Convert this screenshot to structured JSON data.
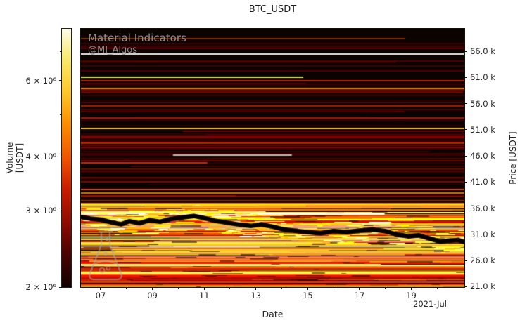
{
  "watermark": {
    "line1": "Material Indicators",
    "line2": "@MI_Algos"
  },
  "colors": {
    "figure_bg": "#ffffff",
    "text": "#262626",
    "watermark_text": "#8f8f8f",
    "plot_bg": "#0b0300",
    "colorbar_stops": [
      "#120100",
      "#4a0400",
      "#8f0b00",
      "#c81c00",
      "#ef5500",
      "#fb8c00",
      "#fdc52a",
      "#f9e96a",
      "#fdfbe8"
    ]
  },
  "chart_data": {
    "type": "heatmap",
    "title": "BTC_USDT",
    "xlabel": "Date",
    "x_period_label": "2021-Jul",
    "grid": false,
    "legend": "none",
    "x_domain_days": [
      6.24,
      21.05
    ],
    "x_ticks": [
      {
        "day": 7,
        "label": "07"
      },
      {
        "day": 9,
        "label": "09"
      },
      {
        "day": 11,
        "label": "11"
      },
      {
        "day": 13,
        "label": "13"
      },
      {
        "day": 15,
        "label": "15"
      },
      {
        "day": 17,
        "label": "17"
      },
      {
        "day": 19,
        "label": "19"
      }
    ],
    "x_minor_tick_days": [
      8,
      10,
      12,
      14,
      16,
      18,
      20
    ],
    "price_axis_label": "Price [USDT]",
    "price_domain_k": [
      20.9,
      70.3
    ],
    "price_ticks": [
      {
        "value": 66,
        "label": "66.0 k"
      },
      {
        "value": 61,
        "label": "61.0 k"
      },
      {
        "value": 56,
        "label": "56.0 k"
      },
      {
        "value": 51,
        "label": "51.0 k"
      },
      {
        "value": 46,
        "label": "46.0 k"
      },
      {
        "value": 41,
        "label": "41.0 k"
      },
      {
        "value": 36,
        "label": "36.0 k"
      },
      {
        "value": 31,
        "label": "31.0 k"
      },
      {
        "value": 26,
        "label": "26.0 k"
      },
      {
        "value": 21,
        "label": "21.0 k"
      }
    ],
    "volume_axis_label": "Volume [USDT]",
    "volume_scale": "log",
    "volume_domain": [
      2000000,
      7900000
    ],
    "volume_ticks": [
      {
        "value": 6000000,
        "label": "6 × 10⁶"
      },
      {
        "value": 4000000,
        "label": "4 × 10⁶"
      },
      {
        "value": 3000000,
        "label": "3 × 10⁶"
      },
      {
        "value": 2000000,
        "label": "2 × 10⁶"
      }
    ],
    "volume_minor_tick_values": [
      5000000,
      7000000
    ],
    "background": "#0b0300",
    "texture_seed": 1337,
    "dense_zone_price_k": [
      21.0,
      36.6
    ],
    "sparse_zone_price_k": [
      36.8,
      69.8
    ],
    "price_line": {
      "days": [
        6.24,
        6.6,
        7.0,
        7.4,
        7.8,
        8.1,
        8.5,
        8.9,
        9.3,
        9.7,
        10.1,
        10.6,
        11.0,
        11.4,
        11.9,
        12.3,
        12.8,
        13.2,
        13.7,
        14.1,
        14.6,
        15.0,
        15.5,
        16.0,
        16.5,
        17.0,
        17.5,
        18.0,
        18.4,
        18.9,
        19.3,
        19.7,
        20.1,
        20.5,
        20.8,
        21.05
      ],
      "price_k": [
        34.3,
        34.0,
        33.8,
        33.3,
        32.9,
        33.5,
        33.1,
        33.7,
        33.4,
        33.9,
        34.2,
        34.5,
        34.1,
        33.6,
        33.2,
        32.9,
        32.6,
        32.9,
        32.4,
        31.9,
        31.6,
        31.4,
        31.2,
        31.6,
        31.4,
        31.7,
        31.9,
        31.6,
        31.0,
        30.6,
        30.8,
        30.2,
        29.6,
        29.8,
        29.9,
        29.5
      ]
    },
    "notable_liquidity_lines": [
      {
        "price_k": 65.5,
        "x0": 0,
        "x1": 1,
        "color": "#eaeaea",
        "width": 2
      },
      {
        "price_k": 63.2,
        "x0": 0,
        "x1": 1,
        "color": "#4a0600",
        "width": 1
      },
      {
        "price_k": 61.0,
        "x0": 0,
        "x1": 0.58,
        "color": "#d8e34c",
        "width": 2
      },
      {
        "price_k": 60.3,
        "x0": 0,
        "x1": 1,
        "color": "#c42100",
        "width": 2
      },
      {
        "price_k": 58.9,
        "x0": 0,
        "x1": 1,
        "color": "#8f1200",
        "width": 1
      },
      {
        "price_k": 57.6,
        "x0": 0,
        "x1": 1,
        "color": "#5f0900",
        "width": 1
      },
      {
        "price_k": 56.2,
        "x0": 0,
        "x1": 1,
        "color": "#7c0e00",
        "width": 1
      },
      {
        "price_k": 54.8,
        "x0": 0,
        "x1": 1,
        "color": "#490500",
        "width": 1
      },
      {
        "price_k": 53.3,
        "x0": 0,
        "x1": 1,
        "color": "#a21700",
        "width": 2
      },
      {
        "price_k": 51.2,
        "x0": 0,
        "x1": 1,
        "color": "#f2c23e",
        "width": 2
      },
      {
        "price_k": 49.8,
        "x0": 0,
        "x1": 1,
        "color": "#6f0c00",
        "width": 1
      },
      {
        "price_k": 48.6,
        "x0": 0,
        "x1": 1,
        "color": "#bb1b00",
        "width": 2
      },
      {
        "price_k": 47.3,
        "x0": 0,
        "x1": 1,
        "color": "#570700",
        "width": 1
      },
      {
        "price_k": 46.2,
        "x0": 0.24,
        "x1": 0.55,
        "color": "#c2bcab",
        "width": 2
      },
      {
        "price_k": 45.0,
        "x0": 0,
        "x1": 1,
        "color": "#801000",
        "width": 1
      },
      {
        "price_k": 44.6,
        "x0": 0,
        "x1": 0.33,
        "color": "#cc2400",
        "width": 2
      },
      {
        "price_k": 43.1,
        "x0": 0,
        "x1": 1,
        "color": "#6f0c00",
        "width": 1
      },
      {
        "price_k": 41.9,
        "x0": 0,
        "x1": 1,
        "color": "#9a1400",
        "width": 1
      },
      {
        "price_k": 41.0,
        "x0": 0,
        "x1": 1,
        "color": "#bf2000",
        "width": 1
      },
      {
        "price_k": 39.6,
        "x0": 0,
        "x1": 1,
        "color": "#dc4c00",
        "width": 2
      },
      {
        "price_k": 38.9,
        "x0": 0,
        "x1": 1,
        "color": "#8a1100",
        "width": 1
      },
      {
        "price_k": 38.2,
        "x0": 0,
        "x1": 1,
        "color": "#b51a00",
        "width": 1
      },
      {
        "price_k": 37.4,
        "x0": 0,
        "x1": 1,
        "color": "#e86400",
        "width": 1
      },
      {
        "price_k": 36.9,
        "x0": 0,
        "x1": 1,
        "color": "#f08414",
        "width": 2
      },
      {
        "price_k": 36.2,
        "x0": 0,
        "x1": 1,
        "color": "#f7a826",
        "width": 2
      },
      {
        "price_k": 35.6,
        "x0": 0,
        "x1": 1,
        "color": "#ffd44d",
        "width": 1
      },
      {
        "price_k": 30.0,
        "x0": 0,
        "x1": 1,
        "color": "#ffd84d",
        "width": 2
      },
      {
        "price_k": 28.8,
        "x0": 0,
        "x1": 1,
        "color": "#f07b12",
        "width": 1
      },
      {
        "price_k": 27.4,
        "x0": 0,
        "x1": 1,
        "color": "#ff9b2e",
        "width": 2
      },
      {
        "price_k": 26.1,
        "x0": 0,
        "x1": 1,
        "color": "#d43a00",
        "width": 1
      },
      {
        "price_k": 25.1,
        "x0": 0,
        "x1": 1,
        "color": "#ffe9a8",
        "width": 2
      },
      {
        "price_k": 24.2,
        "x0": 0,
        "x1": 1,
        "color": "#c22800",
        "width": 1
      },
      {
        "price_k": 23.3,
        "x0": 0,
        "x1": 1,
        "color": "#ff7b1c",
        "width": 2
      },
      {
        "price_k": 22.5,
        "x0": 0,
        "x1": 1,
        "color": "#a81800",
        "width": 1
      },
      {
        "price_k": 21.8,
        "x0": 0,
        "x1": 1,
        "color": "#e23c00",
        "width": 2
      },
      {
        "price_k": 21.2,
        "x0": 0,
        "x1": 1,
        "color": "#ffb347",
        "width": 1
      }
    ]
  }
}
